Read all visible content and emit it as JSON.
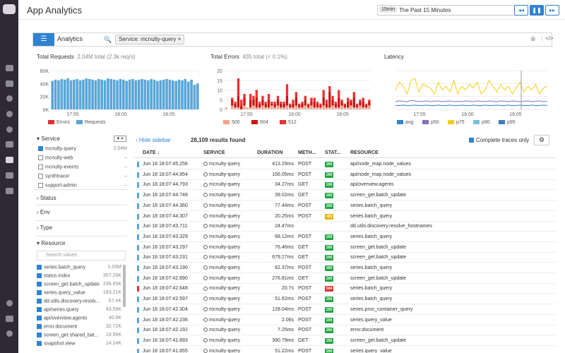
{
  "header": {
    "title": "App Analytics",
    "time_tag": "15min",
    "time_label": "The Past 15 Minutes",
    "caret": "▾",
    "btn_prev": "◂◂",
    "btn_pause": "❚❚",
    "btn_next": "▸▸"
  },
  "query": {
    "list_icon": "☰",
    "analytics_label": "Analytics",
    "search_icon": "🔍",
    "chip": "Service: mcnulty-query ×",
    "clear": "⊗",
    "code": "</>"
  },
  "charts": {
    "requests": {
      "title": "Total Requests",
      "sub": "2.04M total (2.3k req/s)",
      "yticks": [
        "60K",
        "40K",
        "20K",
        "0K"
      ],
      "xticks": [
        "17:55",
        "18:00",
        "18:05"
      ],
      "legend": [
        "Errors",
        "Requests"
      ],
      "colors": [
        "#d33",
        "#5aa6d8"
      ]
    },
    "errors": {
      "title": "Total Errors",
      "sub": "435 total (< 0.1%)",
      "yticks": [
        "20",
        "15",
        "10",
        "5",
        "0"
      ],
      "xticks": [
        "17:55",
        "18:00",
        "18:05"
      ],
      "legend": [
        "500",
        "504",
        "512"
      ],
      "colors": [
        "#f2a58a",
        "#c11",
        "#e33"
      ]
    },
    "latency": {
      "title": "Latency",
      "xticks": [
        "17:55",
        "18:00",
        "18:05"
      ],
      "legend": [
        "avg",
        "p50",
        "p75",
        "p90",
        "p95"
      ],
      "colors": [
        "#2f83d1",
        "#8a6fb8",
        "#f4cd1a",
        "#78c0e0",
        "#3a7fbf"
      ]
    }
  },
  "chart_data": [
    {
      "type": "bar",
      "title": "Total Requests",
      "ylim": [
        0,
        60000
      ],
      "series": [
        {
          "name": "Requests",
          "values": [
            44000,
            46000,
            45000,
            47000,
            46000,
            48000,
            45000,
            46000,
            47000,
            45000,
            46000,
            48000,
            47000,
            46000,
            45000,
            47000,
            46000,
            45000,
            48000,
            47000,
            46000,
            45000,
            47000,
            46000,
            44000,
            46000,
            47000,
            45000,
            46000,
            47000,
            46000,
            45000,
            47000,
            46000,
            44000,
            45000,
            46000,
            47000,
            46000,
            45000,
            44000,
            46000,
            45000,
            47000,
            43000,
            46000,
            38000,
            40000
          ]
        },
        {
          "name": "Errors",
          "values": []
        }
      ]
    },
    {
      "type": "bar",
      "title": "Total Errors",
      "ylim": [
        0,
        20
      ],
      "series": [
        {
          "name": "500",
          "values": [
            1,
            0,
            2,
            1,
            1,
            0,
            2,
            1,
            1,
            2,
            1,
            1,
            2,
            1,
            1,
            2,
            1,
            2,
            1,
            1,
            2,
            1,
            1,
            2,
            1,
            1,
            2,
            1,
            2,
            1,
            1,
            1,
            2,
            1,
            1,
            2,
            1,
            1,
            2,
            1,
            1,
            2,
            1,
            1,
            2,
            1,
            1,
            2
          ]
        },
        {
          "name": "504",
          "values": [
            0,
            0,
            3,
            2,
            6,
            2,
            4,
            0,
            4,
            3,
            5,
            2,
            3,
            2,
            4,
            1,
            2,
            3,
            2,
            2,
            5,
            1,
            2,
            4,
            1,
            2,
            3,
            1,
            2,
            3,
            2,
            1,
            4,
            2,
            8,
            3,
            2,
            5,
            2,
            1,
            3,
            2,
            5,
            1,
            2,
            3,
            1,
            2
          ]
        },
        {
          "name": "512",
          "values": [
            0,
            0,
            1,
            1,
            9,
            3,
            2,
            0,
            3,
            2,
            4,
            1,
            2,
            1,
            3,
            1,
            1,
            2,
            1,
            1,
            6,
            1,
            2,
            3,
            1,
            1,
            2,
            1,
            2,
            2,
            1,
            1,
            4,
            2,
            3,
            2,
            1,
            4,
            1,
            1,
            2,
            1,
            3,
            1,
            1,
            2,
            1,
            1
          ]
        }
      ]
    },
    {
      "type": "line",
      "title": "Latency",
      "series": [
        {
          "name": "p95",
          "values": [
            0.5,
            0.7,
            0.6,
            0.4,
            0.75,
            0.8,
            0.45,
            0.65,
            0.6,
            0.55,
            0.4,
            0.7,
            0.5,
            0.6,
            0.45,
            0.75,
            0.4,
            0.6,
            0.5,
            0.65,
            0.55,
            0.7,
            0.4,
            0.5,
            0.75,
            0.6,
            0.45,
            0.65,
            0.5,
            0.6,
            0.4,
            0.55,
            0.7,
            0.45,
            0.6,
            0.5,
            0.65,
            0.4,
            0.55,
            0.6
          ]
        },
        {
          "name": "p90",
          "values": [
            0.2,
            0.22,
            0.21,
            0.2,
            0.23,
            0.22,
            0.2,
            0.21,
            0.22,
            0.2,
            0.21,
            0.22,
            0.2,
            0.21,
            0.22,
            0.2,
            0.21,
            0.2,
            0.22,
            0.21,
            0.2,
            0.22,
            0.21,
            0.2,
            0.22,
            0.21,
            0.2,
            0.22,
            0.21,
            0.2,
            0.22,
            0.21,
            0.2,
            0.21,
            0.22,
            0.2,
            0.21,
            0.22,
            0.2,
            0.21
          ]
        },
        {
          "name": "p50",
          "values": [
            0.1,
            0.1,
            0.11,
            0.1,
            0.1,
            0.11,
            0.1,
            0.1,
            0.11,
            0.1,
            0.1,
            0.11,
            0.1,
            0.1,
            0.11,
            0.1,
            0.1,
            0.11,
            0.1,
            0.1,
            0.11,
            0.1,
            0.1,
            0.11,
            0.1,
            0.1,
            0.11,
            0.1,
            0.1,
            0.11,
            0.1,
            0.1,
            0.11,
            0.1,
            0.1,
            0.11,
            0.1,
            0.1,
            0.11,
            0.1
          ]
        }
      ]
    }
  ],
  "sidebar": {
    "service_head": "Service",
    "services": [
      {
        "name": "mcnulty-query",
        "count": "2.04M",
        "on": true
      },
      {
        "name": "mcnulty-web",
        "count": "–",
        "on": false
      },
      {
        "name": "mcnulty-events",
        "count": "–",
        "on": false
      },
      {
        "name": "synthtracer",
        "count": "–",
        "on": false
      },
      {
        "name": "support-admin",
        "count": "–",
        "on": false
      }
    ],
    "facets": [
      "Status",
      "Env",
      "Type",
      "Resource"
    ],
    "search_placeholder": "Search values",
    "resources": [
      {
        "name": "series.batch_query",
        "count": "1.03M"
      },
      {
        "name": "status.index",
        "count": "307.26K"
      },
      {
        "name": "screen_get.batch_update",
        "count": "236.65K"
      },
      {
        "name": "series.query_value",
        "count": "183.21K"
      },
      {
        "name": "dd.utils.discovery.resolv...",
        "count": "57.4K"
      },
      {
        "name": "api/series.query",
        "count": "43.59K"
      },
      {
        "name": "api/overview.agents",
        "count": "40.8K"
      },
      {
        "name": "error.document",
        "count": "32.72K"
      },
      {
        "name": "screen_get.shared_bat...",
        "count": "19.56K"
      },
      {
        "name": "snapshot.view",
        "count": "14.14K"
      }
    ]
  },
  "results": {
    "hide_sidebar": "Hide sidebar",
    "count": "28,109 results found",
    "complete": "Complete traces only",
    "gear": "⚙",
    "headers": [
      "DATE ↓",
      "SERVICE",
      "DURATION",
      "METH...",
      "STAT...",
      "RESOURCE"
    ],
    "rows": [
      {
        "date": "Jun 18 18:07:45.256",
        "service": "mcnulty-query",
        "duration": "413.29ms",
        "method": "POST",
        "status": "200",
        "resource": "api/node_map.node_values",
        "color": "#5aa6d8"
      },
      {
        "date": "Jun 18 18:07:44.954",
        "service": "mcnulty-query",
        "duration": "156.05ms",
        "method": "POST",
        "status": "200",
        "resource": "api/node_map.node_values",
        "color": "#5aa6d8"
      },
      {
        "date": "Jun 18 18:07:44.793",
        "service": "mcnulty-query",
        "duration": "34.27ms",
        "method": "GET",
        "status": "200",
        "resource": "api/overview.agents",
        "color": "#5aa6d8"
      },
      {
        "date": "Jun 18 18:07:44.748",
        "service": "mcnulty-query",
        "duration": "39.02ms",
        "method": "GET",
        "status": "200",
        "resource": "screen_get.batch_update",
        "color": "#5aa6d8"
      },
      {
        "date": "Jun 18 18:07:44.360",
        "service": "mcnulty-query",
        "duration": "77.44ms",
        "method": "POST",
        "status": "200",
        "resource": "series.batch_query",
        "color": "#5aa6d8"
      },
      {
        "date": "Jun 18 18:07:44.307",
        "service": "mcnulty-query",
        "duration": "20.25ms",
        "method": "POST",
        "status": "403",
        "resource": "series.batch_query",
        "color": "#5aa6d8"
      },
      {
        "date": "Jun 18 18:07:43.711",
        "service": "mcnulty-query",
        "duration": "24.47ms",
        "method": "",
        "status": "",
        "resource": "dd.utils.discovery.resolve_hostnames",
        "color": "#5aa6d8"
      },
      {
        "date": "Jun 18 18:07:43.329",
        "service": "mcnulty-query",
        "duration": "68.12ms",
        "method": "POST",
        "status": "200",
        "resource": "series.batch_query",
        "color": "#5aa6d8"
      },
      {
        "date": "Jun 18 18:07:43.297",
        "service": "mcnulty-query",
        "duration": "76.46ms",
        "method": "GET",
        "status": "200",
        "resource": "screen_get.batch_update",
        "color": "#5aa6d8"
      },
      {
        "date": "Jun 18 18:07:43.231",
        "service": "mcnulty-query",
        "duration": "679.27ms",
        "method": "GET",
        "status": "200",
        "resource": "screen_get.batch_update",
        "color": "#5aa6d8"
      },
      {
        "date": "Jun 18 18:07:43.190",
        "service": "mcnulty-query",
        "duration": "62.37ms",
        "method": "POST",
        "status": "200",
        "resource": "series.batch_query",
        "color": "#5aa6d8"
      },
      {
        "date": "Jun 18 18:07:42.890",
        "service": "mcnulty-query",
        "duration": "276.81ms",
        "method": "GET",
        "status": "200",
        "resource": "screen_get.batch_update",
        "color": "#5aa6d8"
      },
      {
        "date": "Jun 18 18:07:42.648",
        "service": "mcnulty-query",
        "duration": "20.7s",
        "method": "POST",
        "status": "504",
        "resource": "series.batch_query",
        "color": "#d33"
      },
      {
        "date": "Jun 18 18:07:42.597",
        "service": "mcnulty-query",
        "duration": "51.62ms",
        "method": "POST",
        "status": "200",
        "resource": "series.batch_query",
        "color": "#5aa6d8"
      },
      {
        "date": "Jun 18 18:07:42.304",
        "service": "mcnulty-query",
        "duration": "128.04ms",
        "method": "POST",
        "status": "200",
        "resource": "series.proc_container_query",
        "color": "#5aa6d8"
      },
      {
        "date": "Jun 18 18:07:42.236",
        "service": "mcnulty-query",
        "duration": "2.06s",
        "method": "POST",
        "status": "200",
        "resource": "series.query_value",
        "color": "#5aa6d8"
      },
      {
        "date": "Jun 18 18:07:42.192",
        "service": "mcnulty-query",
        "duration": "7.25ms",
        "method": "POST",
        "status": "200",
        "resource": "error.document",
        "color": "#5aa6d8"
      },
      {
        "date": "Jun 18 18:07:41.893",
        "service": "mcnulty-query",
        "duration": "390.79ms",
        "method": "GET",
        "status": "200",
        "resource": "screen_get.batch_update",
        "color": "#5aa6d8"
      },
      {
        "date": "Jun 18 18:07:41.855",
        "service": "mcnulty-query",
        "duration": "51.22ms",
        "method": "POST",
        "status": "200",
        "resource": "series.query_value",
        "color": "#5aa6d8"
      }
    ]
  }
}
